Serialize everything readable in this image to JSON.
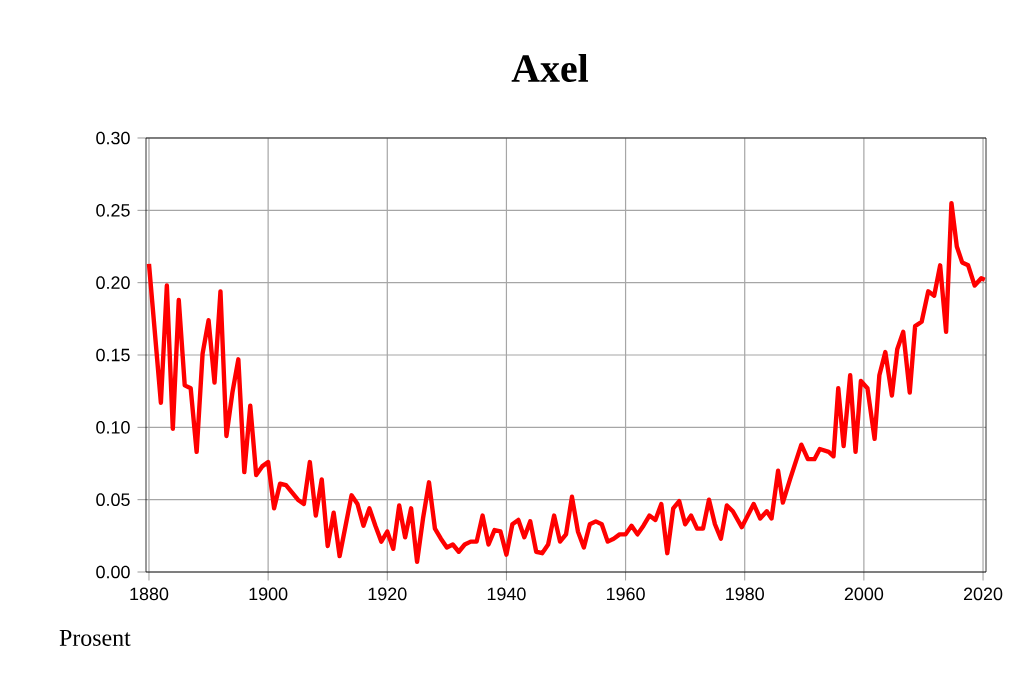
{
  "chart_data": {
    "type": "line",
    "title": "Axel",
    "ylabel": "Prosent",
    "xlim": [
      1879.5,
      2020.5
    ],
    "xticks": [
      1880,
      1900,
      1920,
      1940,
      1960,
      1980,
      2000,
      2020
    ],
    "ylim": [
      0,
      0.3
    ],
    "yticks": [
      {
        "value": 0,
        "label": "0.00"
      },
      {
        "value": 0.05,
        "label": "0.05"
      },
      {
        "value": 0.1,
        "label": "0.10"
      },
      {
        "value": 0.15,
        "label": "0.15"
      },
      {
        "value": 0.2,
        "label": "0.20"
      },
      {
        "value": 0.25,
        "label": "0.25"
      },
      {
        "value": 0.3,
        "label": "0.30"
      }
    ],
    "grid": true,
    "marker": "none",
    "line_style": "solid",
    "series": [
      {
        "color": "#ff0000",
        "x": [
          1880,
          1882,
          1883,
          1884,
          1885,
          1886,
          1887,
          1888,
          1889,
          1890,
          1891,
          1892,
          1893,
          1894,
          1895,
          1896,
          1897,
          1898,
          1899,
          1900,
          1901,
          1902,
          1903,
          1904,
          1905,
          1906,
          1907,
          1908,
          1909,
          1910,
          1911,
          1912,
          1913,
          1914,
          1915,
          1916,
          1917,
          1918,
          1919,
          1920,
          1921,
          1922,
          1923,
          1924,
          1925,
          1926,
          1927,
          1928,
          1929,
          1930,
          1931,
          1932,
          1933,
          1934,
          1935,
          1936,
          1937,
          1938,
          1939,
          1940,
          1941,
          1942,
          1943,
          1944,
          1945,
          1946,
          1947,
          1948,
          1949,
          1950,
          1951,
          1952,
          1953,
          1954,
          1955,
          1956,
          1957,
          1958,
          1959,
          1960,
          1961,
          1962,
          1963,
          1964,
          1965,
          1966,
          1967,
          1968,
          1969,
          1970,
          1971,
          1972,
          1973,
          1974,
          1975,
          1976,
          1977,
          1978,
          1979.5,
          1981.5,
          1982.6,
          1983.7,
          1984.5,
          1985.6,
          1986.4,
          1987.6,
          1989.5,
          1990.6,
          1991.7,
          1992.6,
          1994.1,
          1994.9,
          1995.7,
          1996.6,
          1997.7,
          1998.6,
          1999.5,
          2000.6,
          2001.8,
          2002.6,
          2003.6,
          2004.7,
          2005.6,
          2006.6,
          2007.7,
          2008.6,
          2009.7,
          2010.8,
          2011.8,
          2012.8,
          2013.8,
          2014.7,
          2015.6,
          2016.5,
          2017.5,
          2018.6,
          2019.7,
          2020.3
        ],
        "values": [
          0.213,
          0.117,
          0.198,
          0.099,
          0.188,
          0.129,
          0.127,
          0.083,
          0.151,
          0.174,
          0.131,
          0.194,
          0.094,
          0.124,
          0.147,
          0.069,
          0.115,
          0.067,
          0.073,
          0.076,
          0.044,
          0.061,
          0.06,
          0.055,
          0.05,
          0.047,
          0.076,
          0.039,
          0.064,
          0.018,
          0.041,
          0.011,
          0.032,
          0.053,
          0.047,
          0.032,
          0.044,
          0.032,
          0.021,
          0.028,
          0.016,
          0.046,
          0.024,
          0.044,
          0.007,
          0.037,
          0.062,
          0.03,
          0.023,
          0.017,
          0.019,
          0.014,
          0.019,
          0.021,
          0.021,
          0.039,
          0.019,
          0.029,
          0.028,
          0.012,
          0.033,
          0.036,
          0.024,
          0.035,
          0.014,
          0.013,
          0.019,
          0.039,
          0.021,
          0.026,
          0.052,
          0.028,
          0.017,
          0.033,
          0.035,
          0.033,
          0.021,
          0.023,
          0.026,
          0.026,
          0.032,
          0.026,
          0.032,
          0.039,
          0.036,
          0.047,
          0.013,
          0.044,
          0.049,
          0.033,
          0.039,
          0.03,
          0.03,
          0.05,
          0.033,
          0.023,
          0.046,
          0.042,
          0.031,
          0.047,
          0.037,
          0.042,
          0.037,
          0.07,
          0.048,
          0.064,
          0.088,
          0.078,
          0.078,
          0.085,
          0.083,
          0.08,
          0.127,
          0.087,
          0.136,
          0.083,
          0.132,
          0.127,
          0.092,
          0.136,
          0.152,
          0.122,
          0.154,
          0.166,
          0.124,
          0.17,
          0.173,
          0.194,
          0.191,
          0.212,
          0.166,
          0.255,
          0.225,
          0.214,
          0.212,
          0.198,
          0.203,
          0.202
        ]
      }
    ]
  }
}
